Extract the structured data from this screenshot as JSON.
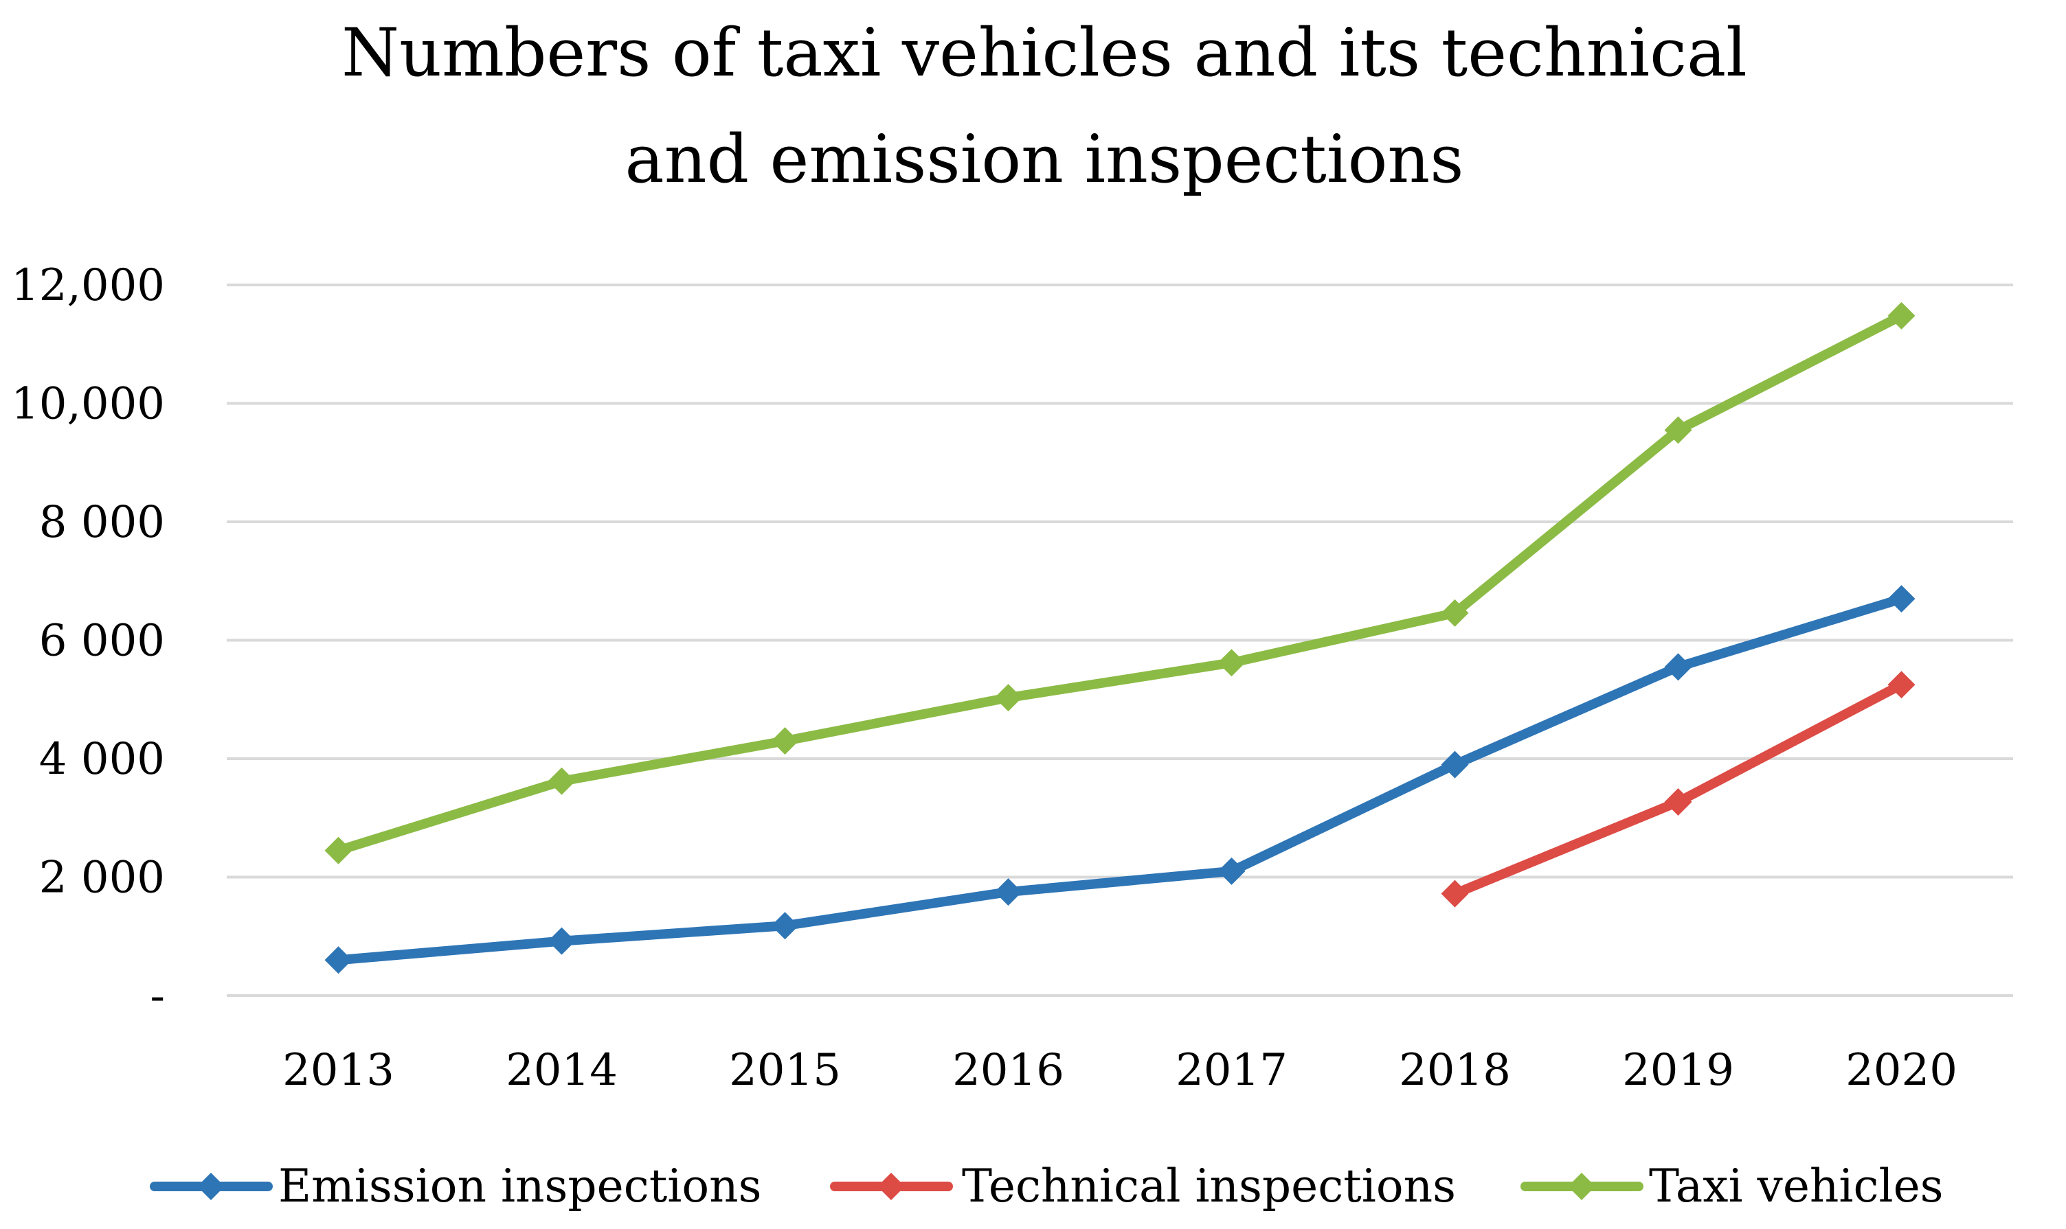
{
  "chart_data": {
    "type": "line",
    "title_lines": [
      "Numbers of taxi vehicles and its technical",
      "and emission inspections"
    ],
    "categories": [
      "2013",
      "2014",
      "2015",
      "2016",
      "2017",
      "2018",
      "2019",
      "2020"
    ],
    "ylim": [
      0,
      12000
    ],
    "y_ticks": [
      {
        "value": 0,
        "label": "-"
      },
      {
        "value": 2000,
        "label": "2 000"
      },
      {
        "value": 4000,
        "label": "4 000"
      },
      {
        "value": 6000,
        "label": "6 000"
      },
      {
        "value": 8000,
        "label": "8 000"
      },
      {
        "value": 10000,
        "label": "10,000"
      },
      {
        "value": 12000,
        "label": "12,000"
      }
    ],
    "grid": true,
    "legend_position": "bottom",
    "series": [
      {
        "name": "Emission inspections",
        "color": "#2e75b6",
        "values": [
          600,
          920,
          1180,
          1750,
          2100,
          3900,
          5550,
          6700
        ]
      },
      {
        "name": "Technical inspections",
        "color": "#dd4b45",
        "values": [
          null,
          null,
          null,
          null,
          null,
          1720,
          3270,
          5250
        ]
      },
      {
        "name": "Taxi vehicles",
        "color": "#8cbb45",
        "values": [
          2450,
          3620,
          4300,
          5030,
          5620,
          6460,
          9550,
          11480
        ]
      }
    ]
  }
}
